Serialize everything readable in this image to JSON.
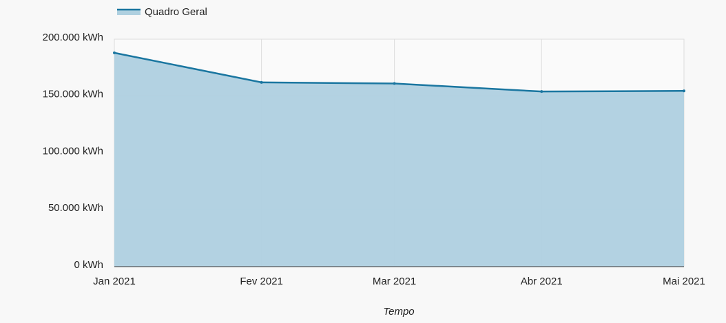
{
  "chart_data": {
    "type": "area",
    "legend": "top-left",
    "x": [
      "2021-01",
      "2021-02",
      "2021-03",
      "2021-04",
      "2021-05"
    ],
    "series": [
      {
        "name": "Quadro Geral",
        "color": "#1a76a0",
        "fill": "#afd0e0",
        "values": [
          188000,
          162000,
          161000,
          154000,
          154500
        ]
      }
    ],
    "xlabel": "Tempo",
    "xlim": [
      "2021-01",
      "2021-05"
    ],
    "xticks": [
      {
        "value": "2021-01",
        "label": "Jan 2021"
      },
      {
        "value": "2021-02",
        "label": "Fev 2021"
      },
      {
        "value": "2021-03",
        "label": "Mar 2021"
      },
      {
        "value": "2021-04",
        "label": "Abr 2021"
      },
      {
        "value": "2021-05",
        "label": "Mai 2021"
      }
    ],
    "ylim": [
      0,
      200000
    ],
    "yticks": [
      {
        "value": 0,
        "label": "0 kWh"
      },
      {
        "value": 50000,
        "label": "50.000 kWh"
      },
      {
        "value": 100000,
        "label": "100.000 kWh"
      },
      {
        "value": 150000,
        "label": "150.000 kWh"
      },
      {
        "value": 200000,
        "label": "200.000 kWh"
      }
    ],
    "grid": true
  }
}
